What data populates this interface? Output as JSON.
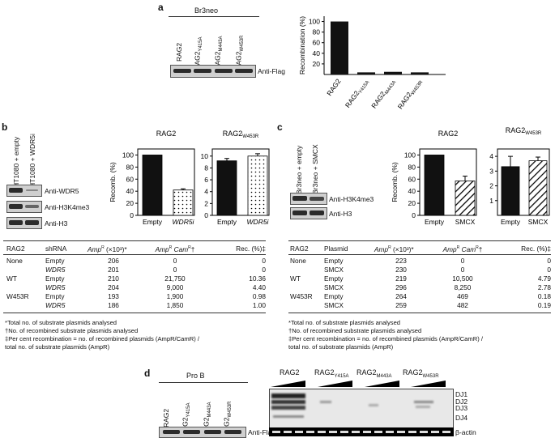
{
  "panel_a": {
    "label": "a",
    "cell_line": "Br3neo",
    "lanes": [
      "RAG2",
      "RAG2Y415A",
      "RAG2M443A",
      "RAG2W453R"
    ],
    "blot_label": "Anti-Flag",
    "chart_data": {
      "type": "bar",
      "ylabel": "Recombination (%)",
      "categories": [
        "RAG2",
        "RAG2Y415A",
        "RAG2M443A",
        "RAG2W453R"
      ],
      "values": [
        100,
        4,
        5,
        4
      ],
      "ylim": [
        0,
        110
      ],
      "yticks": [
        20,
        40,
        60,
        80,
        100
      ]
    }
  },
  "panel_b": {
    "label": "b",
    "lanes": [
      "HT1080 + empty",
      "HT1080 + WDR5i"
    ],
    "blot_labels": [
      "Anti-WDR5",
      "Anti-H3K4me3",
      "Anti-H3"
    ],
    "chart_data": [
      {
        "type": "bar",
        "title": "RAG2",
        "ylabel": "Recomb. (%)",
        "categories": [
          "Empty",
          "WDR5i"
        ],
        "values": [
          100,
          42
        ],
        "ylim": [
          0,
          110
        ],
        "yticks": [
          0,
          20,
          40,
          60,
          80,
          100
        ]
      },
      {
        "type": "bar",
        "title": "RAG2W453R",
        "categories": [
          "Empty",
          "WDR5i"
        ],
        "values": [
          0.92,
          1.0
        ],
        "ylim": [
          0,
          1.12
        ],
        "yticks": [
          0,
          0.2,
          0.4,
          0.6,
          0.8,
          1.0
        ]
      }
    ]
  },
  "panel_c": {
    "label": "c",
    "lanes": [
      "Br3neo + empty",
      "Br3neo + SMCX"
    ],
    "blot_labels": [
      "Anti-H3K4me3",
      "Anti-H3"
    ],
    "chart_data": [
      {
        "type": "bar",
        "title": "RAG2",
        "ylabel": "Recomb. (%)",
        "categories": [
          "Empty",
          "SMCX"
        ],
        "values": [
          100,
          57
        ],
        "ylim": [
          0,
          110
        ],
        "yticks": [
          0,
          20,
          40,
          60,
          80,
          100
        ]
      },
      {
        "type": "bar",
        "title": "RAG2W453R",
        "categories": [
          "Empty",
          "SMCX"
        ],
        "values": [
          0.033,
          0.037
        ],
        "ylim": [
          0,
          0.045
        ],
        "yticks": [
          0.01,
          0.02,
          0.03,
          0.04
        ]
      }
    ]
  },
  "table_b": {
    "headers": [
      "RAG2",
      "shRNA",
      "AmpR (×10³)*",
      "AmpR CamR†",
      "Rec. (%)‡"
    ],
    "rows": [
      [
        "None",
        "Empty",
        "206",
        "0",
        "0"
      ],
      [
        "",
        "WDR5",
        "201",
        "0",
        "0"
      ],
      [
        "WT",
        "Empty",
        "210",
        "21,750",
        "10.36"
      ],
      [
        "",
        "WDR5",
        "204",
        "9,000",
        "4.40"
      ],
      [
        "W453R",
        "Empty",
        "193",
        "1,900",
        "0.98"
      ],
      [
        "",
        "WDR5",
        "186",
        "1,850",
        "1.00"
      ]
    ]
  },
  "table_c": {
    "headers": [
      "RAG2",
      "Plasmid",
      "AmpR (×10³)*",
      "AmpR CamR†",
      "Rec. (%)‡"
    ],
    "rows": [
      [
        "None",
        "Empty",
        "223",
        "0",
        "0"
      ],
      [
        "",
        "SMCX",
        "230",
        "0",
        "0"
      ],
      [
        "WT",
        "Empty",
        "219",
        "10,500",
        "4.79"
      ],
      [
        "",
        "SMCX",
        "296",
        "8,250",
        "2.78"
      ],
      [
        "W453R",
        "Empty",
        "264",
        "469",
        "0.18"
      ],
      [
        "",
        "SMCX",
        "259",
        "482",
        "0.19"
      ]
    ]
  },
  "footnotes": [
    "*Total no. of substrate plasmids analysed",
    "†No. of recombined substrate plasmids analysed",
    "‡Per cent recombination = no. of recombined plasmids (AmpR/CamR) /",
    "total no. of substrate plasmids (AmpR)"
  ],
  "panel_d": {
    "label": "d",
    "cell_type": "Pro B",
    "lanes": [
      "RAG2",
      "RAG2Y415A",
      "RAG2M443A",
      "RAG2W453R"
    ],
    "blot_label": "Anti-Flag",
    "gel_groups": [
      "RAG2",
      "RAG2Y415A",
      "RAG2M443A",
      "RAG2W453R"
    ],
    "gel_bands": [
      "DJ1",
      "DJ2",
      "DJ3",
      "DJ4"
    ],
    "loading_label": "β-actin"
  }
}
